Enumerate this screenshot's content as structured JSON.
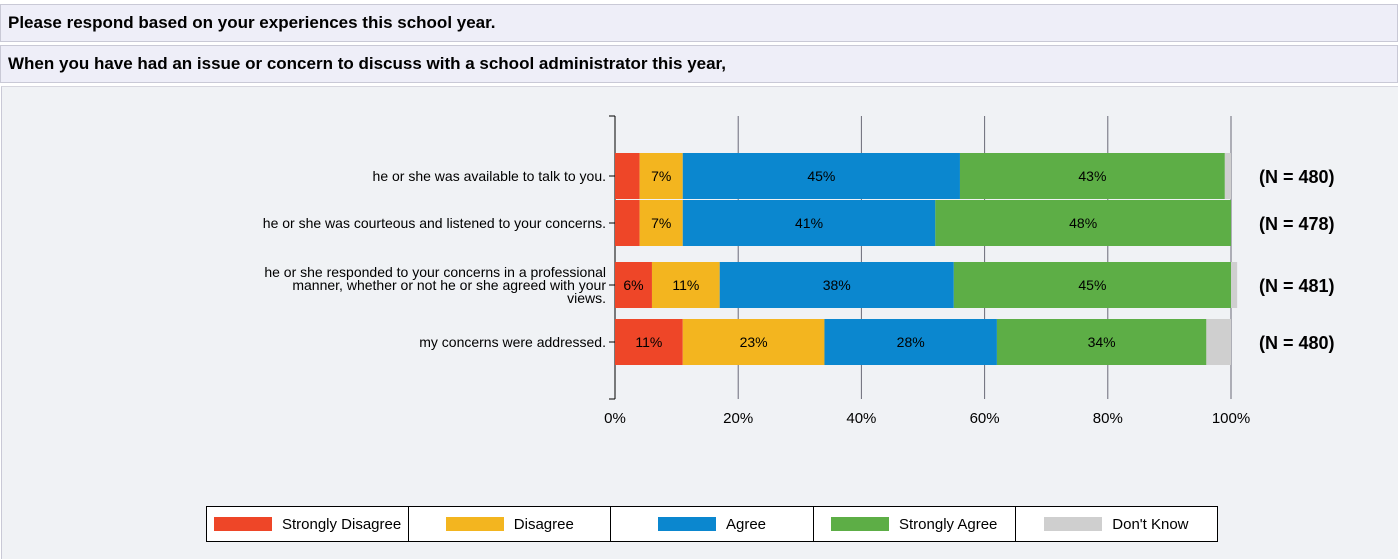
{
  "header": {
    "instruction": "Please respond based on your experiences this school year.",
    "question": "When you have had an issue or concern to discuss with a school administrator this year,"
  },
  "chart_data": {
    "type": "bar",
    "orientation": "horizontal",
    "stacked": true,
    "title": "",
    "xlabel": "",
    "ylabel": "",
    "xlim": [
      0,
      100
    ],
    "x_ticks": [
      "0%",
      "20%",
      "40%",
      "60%",
      "80%",
      "100%"
    ],
    "grid": "vertical",
    "legend_position": "bottom",
    "categories": [
      [
        "he or she was available to talk to you."
      ],
      [
        "he or she was courteous and listened to your concerns."
      ],
      [
        "he or she responded to your concerns in a professional",
        "manner, whether or not he or she agreed with your",
        "views."
      ],
      [
        "my concerns were addressed."
      ]
    ],
    "n_labels": [
      "(N = 480)",
      "(N = 478)",
      "(N = 481)",
      "(N = 480)"
    ],
    "series": [
      {
        "name": "Strongly Disagree",
        "color": "#ee4628",
        "values": [
          4,
          4,
          6,
          11
        ],
        "labels": [
          "",
          "",
          "6%",
          "11%"
        ]
      },
      {
        "name": "Disagree",
        "color": "#f3b51f",
        "values": [
          7,
          7,
          11,
          23
        ],
        "labels": [
          "7%",
          "7%",
          "11%",
          "23%"
        ]
      },
      {
        "name": "Agree",
        "color": "#0b87cf",
        "values": [
          45,
          41,
          38,
          28
        ],
        "labels": [
          "45%",
          "41%",
          "38%",
          "28%"
        ]
      },
      {
        "name": "Strongly Agree",
        "color": "#5dae46",
        "values": [
          43,
          48,
          45,
          34
        ],
        "labels": [
          "43%",
          "48%",
          "45%",
          "34%"
        ]
      },
      {
        "name": "Don't Know",
        "color": "#cfcfcf",
        "values": [
          1,
          0,
          1,
          4
        ],
        "labels": [
          "",
          "",
          "",
          ""
        ]
      }
    ]
  }
}
